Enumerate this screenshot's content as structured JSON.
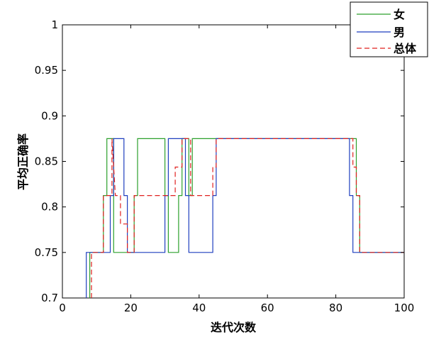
{
  "chart_data": {
    "type": "line",
    "xlabel": "迭代次数",
    "ylabel": "平均正确率",
    "xlim": [
      0,
      100
    ],
    "ylim": [
      0.7,
      1
    ],
    "xticks": [
      0,
      20,
      40,
      60,
      80,
      100
    ],
    "yticks": [
      0.7,
      0.75,
      0.8,
      0.85,
      0.9,
      0.95,
      1
    ],
    "ytick_labels": [
      "0.7",
      "0.75",
      "0.8",
      "0.85",
      "0.9",
      "0.95",
      "1"
    ],
    "grid": false,
    "legend_position": "top-right",
    "series": [
      {
        "name": "女",
        "color": "#2ca02c",
        "dash": "solid",
        "x": [
          8,
          8,
          12,
          12,
          13,
          13,
          15,
          15,
          16,
          16,
          21,
          21,
          22,
          22,
          30,
          30,
          31,
          31,
          34,
          34,
          35,
          35,
          37,
          37,
          38,
          38,
          43,
          43,
          44,
          44,
          86,
          86,
          87,
          87,
          100
        ],
        "y": [
          0.7,
          0.75,
          0.75,
          0.8125,
          0.8125,
          0.875,
          0.875,
          0.75,
          0.75,
          0.75,
          0.75,
          0.8125,
          0.8125,
          0.875,
          0.875,
          0.8125,
          0.8125,
          0.75,
          0.75,
          0.8125,
          0.8125,
          0.875,
          0.875,
          0.8125,
          0.8125,
          0.875,
          0.875,
          0.875,
          0.875,
          0.875,
          0.875,
          0.8125,
          0.8125,
          0.75,
          0.75
        ]
      },
      {
        "name": "男",
        "color": "#1f3fbf",
        "dash": "solid",
        "x": [
          7,
          7,
          14,
          14,
          15,
          15,
          18,
          18,
          19,
          19,
          30,
          30,
          31,
          31,
          36,
          36,
          37,
          37,
          39,
          39,
          44,
          44,
          45,
          45,
          84,
          84,
          85,
          85,
          100
        ],
        "y": [
          0.7,
          0.75,
          0.75,
          0.8125,
          0.8125,
          0.875,
          0.875,
          0.8125,
          0.8125,
          0.75,
          0.75,
          0.8125,
          0.8125,
          0.875,
          0.875,
          0.8125,
          0.8125,
          0.75,
          0.75,
          0.75,
          0.75,
          0.8125,
          0.8125,
          0.875,
          0.875,
          0.8125,
          0.8125,
          0.75,
          0.75
        ]
      },
      {
        "name": "总体",
        "color": "#e0201f",
        "dash": "dashed",
        "x": [
          8.5,
          8.5,
          12,
          12,
          14.5,
          14.5,
          15.5,
          15.5,
          17,
          17,
          19,
          19,
          21,
          21,
          33,
          33,
          35,
          35,
          37.5,
          37.5,
          39,
          39,
          44,
          44,
          45,
          45,
          85,
          85,
          86,
          86,
          87,
          87,
          100
        ],
        "y": [
          0.7,
          0.75,
          0.75,
          0.8125,
          0.8125,
          0.875,
          0.8125,
          0.8125,
          0.8125,
          0.78125,
          0.78125,
          0.75,
          0.75,
          0.8125,
          0.8125,
          0.84375,
          0.84375,
          0.875,
          0.875,
          0.8125,
          0.8125,
          0.8125,
          0.8125,
          0.84375,
          0.84375,
          0.875,
          0.875,
          0.84375,
          0.84375,
          0.8125,
          0.8125,
          0.75,
          0.75
        ]
      }
    ]
  }
}
